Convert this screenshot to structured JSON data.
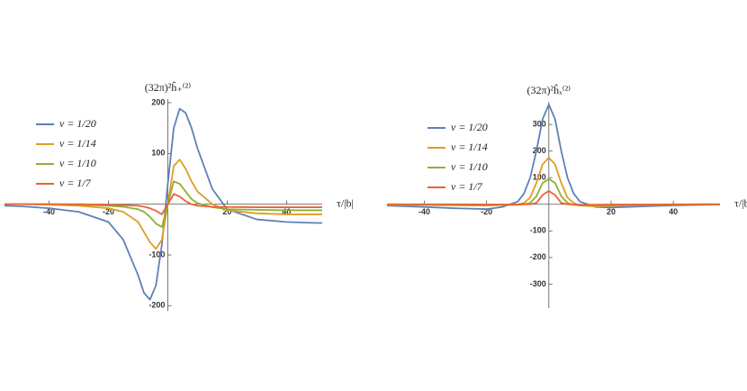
{
  "chart_data": [
    {
      "type": "line",
      "x_label": "τ/|b|",
      "y_label": "(32π)²ĥ₊⁽²⁾",
      "xlim": [
        -55,
        52
      ],
      "ylim": [
        -210,
        207
      ],
      "xticks": [
        -40,
        -20,
        20,
        40
      ],
      "yticks": [
        -200,
        -100,
        100,
        200
      ],
      "x": [
        -55,
        -50,
        -40,
        -30,
        -20,
        -15,
        -10,
        -8,
        -6,
        -4,
        -2,
        0,
        2,
        4,
        6,
        8,
        10,
        15,
        20,
        30,
        40,
        50,
        52
      ],
      "series": [
        {
          "name": "v = 1/20",
          "color": "#5e81b5",
          "values": [
            -3,
            -4,
            -8,
            -15,
            -35,
            -70,
            -140,
            -175,
            -188,
            -160,
            -80,
            40,
            150,
            188,
            180,
            150,
            110,
            30,
            -10,
            -30,
            -35,
            -37,
            -37
          ]
        },
        {
          "name": "v = 1/14",
          "color": "#e19c24",
          "values": [
            0,
            0,
            -1,
            -3,
            -8,
            -15,
            -35,
            -55,
            -75,
            -88,
            -70,
            0,
            75,
            88,
            70,
            45,
            25,
            0,
            -12,
            -18,
            -20,
            -20,
            -20
          ]
        },
        {
          "name": "v = 1/10",
          "color": "#8fb032",
          "values": [
            0,
            0,
            0,
            -1,
            -3,
            -5,
            -10,
            -15,
            -25,
            -38,
            -45,
            0,
            45,
            40,
            25,
            10,
            2,
            -6,
            -10,
            -11,
            -12,
            -12,
            -12
          ]
        },
        {
          "name": "v = 1/7",
          "color": "#eb6235",
          "values": [
            0,
            0,
            0,
            0,
            -1,
            -2,
            -3,
            -5,
            -8,
            -13,
            -20,
            0,
            20,
            15,
            6,
            0,
            -3,
            -5,
            -5.5,
            -6,
            -6,
            -6,
            -6
          ]
        }
      ]
    },
    {
      "type": "line",
      "x_label": "τ/|b|",
      "y_label": "(32π)²ĥₓ⁽²⁾",
      "xlim": [
        -52,
        55
      ],
      "ylim": [
        -390,
        385
      ],
      "xticks": [
        -40,
        -20,
        20,
        40
      ],
      "yticks": [
        -300,
        -200,
        -100,
        100,
        200,
        300
      ],
      "x": [
        -52,
        -40,
        -30,
        -20,
        -15,
        -10,
        -8,
        -6,
        -4,
        -2,
        0,
        2,
        4,
        6,
        8,
        10,
        15,
        20,
        30,
        40,
        50,
        55
      ],
      "series": [
        {
          "name": "v = 1/20",
          "color": "#5e81b5",
          "values": [
            -5,
            -10,
            -15,
            -18,
            -10,
            10,
            40,
            100,
            200,
            320,
            375,
            320,
            200,
            100,
            40,
            10,
            -10,
            -12,
            -8,
            -4,
            -2,
            -1
          ]
        },
        {
          "name": "v = 1/14",
          "color": "#e19c24",
          "values": [
            -2,
            -3,
            -4,
            -5,
            -3,
            0,
            5,
            25,
            80,
            150,
            175,
            150,
            80,
            25,
            5,
            -5,
            -8,
            -6,
            -3,
            -1,
            0,
            0
          ]
        },
        {
          "name": "v = 1/10",
          "color": "#8fb032",
          "values": [
            0,
            -1,
            -2,
            -3,
            -3,
            -2,
            0,
            5,
            30,
            80,
            95,
            80,
            30,
            5,
            -2,
            -4,
            -4,
            -3,
            -2,
            -1,
            0,
            0
          ]
        },
        {
          "name": "v = 1/7",
          "color": "#eb6235",
          "values": [
            0,
            0,
            0,
            -1,
            -1,
            -1,
            0,
            0,
            5,
            35,
            50,
            35,
            5,
            0,
            -1,
            -2,
            -2,
            -1,
            -1,
            0,
            0,
            0
          ]
        }
      ]
    }
  ]
}
